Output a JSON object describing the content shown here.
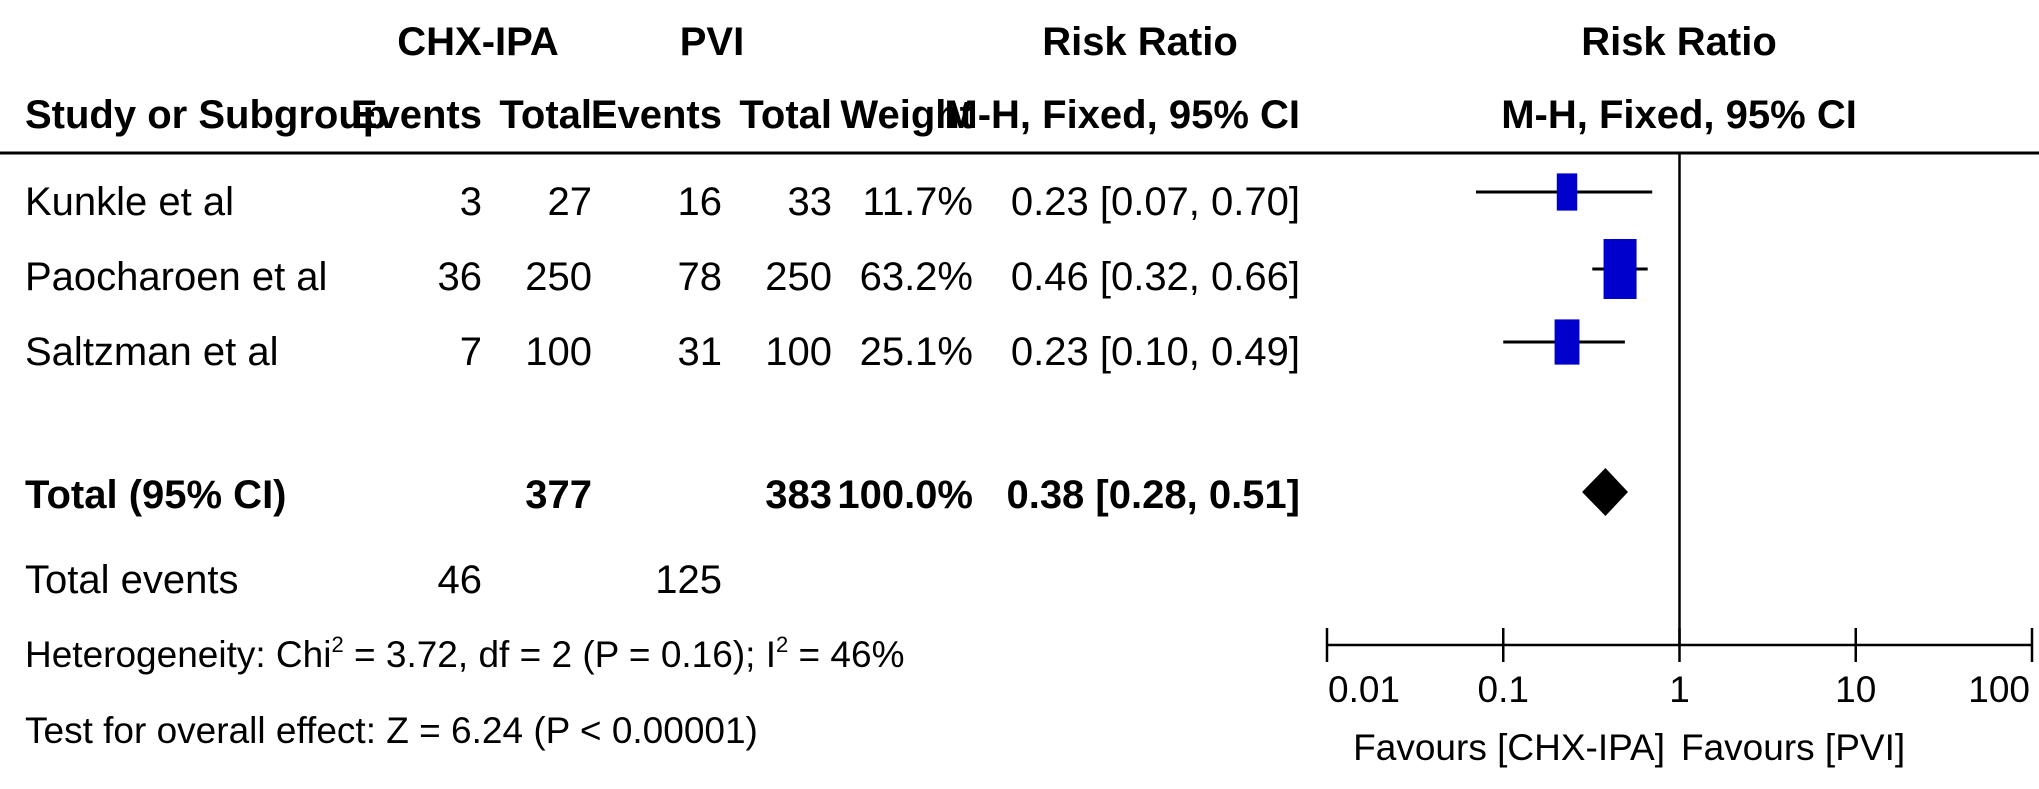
{
  "headers": {
    "group1": "CHX-IPA",
    "group2": "PVI",
    "rr_top": "Risk Ratio",
    "plot_top": "Risk Ratio",
    "study": "Study or Subgroup",
    "g1_events": "Events",
    "g1_total": "Total",
    "g2_events": "Events",
    "g2_total": "Total",
    "weight": "Weight",
    "rr_method": "M-H, Fixed, 95% CI",
    "plot_method": "M-H, Fixed, 95% CI"
  },
  "studies": [
    {
      "name": "Kunkle et al",
      "e1": "3",
      "t1": "27",
      "e2": "16",
      "t2": "33",
      "weight": "11.7%",
      "ci_text": "0.23 [0.07, 0.70]"
    },
    {
      "name": "Paocharoen et al",
      "e1": "36",
      "t1": "250",
      "e2": "78",
      "t2": "250",
      "weight": "63.2%",
      "ci_text": "0.46 [0.32, 0.66]"
    },
    {
      "name": "Saltzman et al",
      "e1": "7",
      "t1": "100",
      "e2": "31",
      "t2": "100",
      "weight": "25.1%",
      "ci_text": "0.23 [0.10, 0.49]"
    }
  ],
  "total": {
    "name": "Total (95% CI)",
    "t1": "377",
    "t2": "383",
    "weight": "100.0%",
    "ci_text": "0.38 [0.28, 0.51]"
  },
  "total_events": {
    "label": "Total events",
    "e1": "46",
    "e2": "125"
  },
  "heterogeneity": {
    "prefix": "Heterogeneity: Chi",
    "sup1": "2",
    "mid": " = 3.72, df = 2 (P = 0.16); I",
    "sup2": "2",
    "suffix": " = 46%"
  },
  "overall_effect": "Test for overall effect: Z = 6.24 (P < 0.00001)",
  "axis": {
    "ticks": [
      "0.01",
      "0.1",
      "1",
      "10",
      "100"
    ],
    "favours_left": "Favours [CHX-IPA]",
    "favours_right": "Favours [PVI]"
  },
  "colors": {
    "study_marker": "#0000cc",
    "summary_diamond": "#000000",
    "lines": "#000000"
  },
  "chart_data": {
    "type": "forest",
    "scale": "log",
    "xlim": [
      0.01,
      100
    ],
    "reference_line": 1,
    "studies": [
      {
        "name": "Kunkle et al",
        "rr": 0.23,
        "lo": 0.07,
        "hi": 0.7,
        "weight": 11.7
      },
      {
        "name": "Paocharoen et al",
        "rr": 0.46,
        "lo": 0.32,
        "hi": 0.66,
        "weight": 63.2
      },
      {
        "name": "Saltzman et al",
        "rr": 0.23,
        "lo": 0.1,
        "hi": 0.49,
        "weight": 25.1
      }
    ],
    "summary": {
      "rr": 0.38,
      "lo": 0.28,
      "hi": 0.51
    }
  }
}
